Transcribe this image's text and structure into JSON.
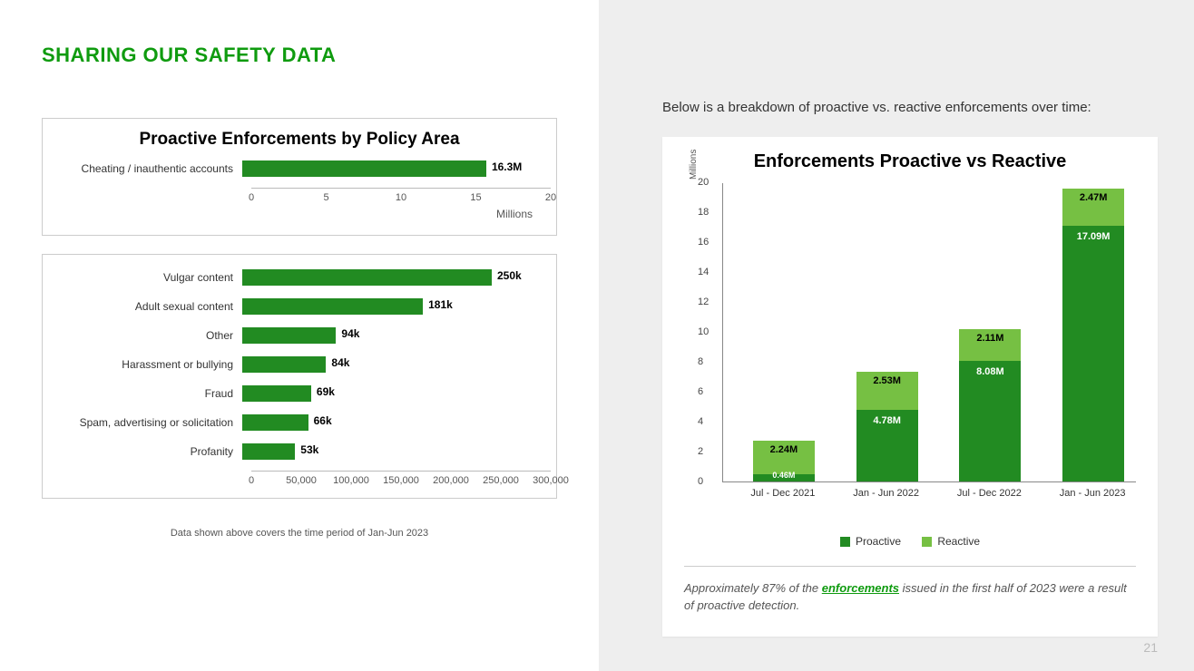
{
  "page": {
    "title": "SHARING OUR SAFETY DATA",
    "note": "Data shown above covers the time period of Jan-Jun 2023",
    "page_number": "21"
  },
  "colors": {
    "bar_primary": "#228b22",
    "bar_light": "#76c043",
    "title_green": "#0f9b0f"
  },
  "chart1": {
    "title": "Proactive Enforcements by Policy Area",
    "type": "horizontal_bar",
    "x_axis_title": "Millions",
    "x_max": 20,
    "x_ticks": [
      "0",
      "5",
      "10",
      "15",
      "20"
    ],
    "rows": [
      {
        "label": "Cheating / inauthentic accounts",
        "value": 16.3,
        "value_label": "16.3M"
      }
    ]
  },
  "chart2": {
    "type": "horizontal_bar",
    "x_max": 300000,
    "x_ticks": [
      "0",
      "50,000",
      "100,000",
      "150,000",
      "200,000",
      "250,000",
      "300,000"
    ],
    "rows": [
      {
        "label": "Vulgar content",
        "value": 250000,
        "value_label": "250k"
      },
      {
        "label": "Adult sexual content",
        "value": 181000,
        "value_label": "181k"
      },
      {
        "label": "Other",
        "value": 94000,
        "value_label": "94k"
      },
      {
        "label": "Harassment or bullying",
        "value": 84000,
        "value_label": "84k"
      },
      {
        "label": "Fraud",
        "value": 69000,
        "value_label": "69k"
      },
      {
        "label": "Spam, advertising or solicitation",
        "value": 66000,
        "value_label": "66k"
      },
      {
        "label": "Profanity",
        "value": 53000,
        "value_label": "53k"
      }
    ]
  },
  "right_intro": "Below is a breakdown of proactive vs. reactive enforcements over time:",
  "chart3": {
    "title": "Enforcements Proactive vs Reactive",
    "type": "stacked_column",
    "y_axis_title": "Millions",
    "y_max": 20,
    "y_step": 2,
    "series": [
      {
        "name": "Proactive",
        "color": "#228b22"
      },
      {
        "name": "Reactive",
        "color": "#76c043"
      }
    ],
    "columns": [
      {
        "category": "Jul - Dec 2021",
        "proactive": 0.46,
        "reactive": 2.24,
        "p_label": "0.46M",
        "r_label": "2.24M"
      },
      {
        "category": "Jan - Jun 2022",
        "proactive": 4.78,
        "reactive": 2.53,
        "p_label": "4.78M",
        "r_label": "2.53M"
      },
      {
        "category": "Jul - Dec 2022",
        "proactive": 8.08,
        "reactive": 2.11,
        "p_label": "8.08M",
        "r_label": "2.11M"
      },
      {
        "category": "Jan - Jun 2023",
        "proactive": 17.09,
        "reactive": 2.47,
        "p_label": "17.09M",
        "r_label": "2.47M"
      }
    ]
  },
  "footnote": {
    "pre": "Approximately 87% of the ",
    "link": "enforcements",
    "post": " issued in the first half of 2023 were a result of proactive detection."
  }
}
